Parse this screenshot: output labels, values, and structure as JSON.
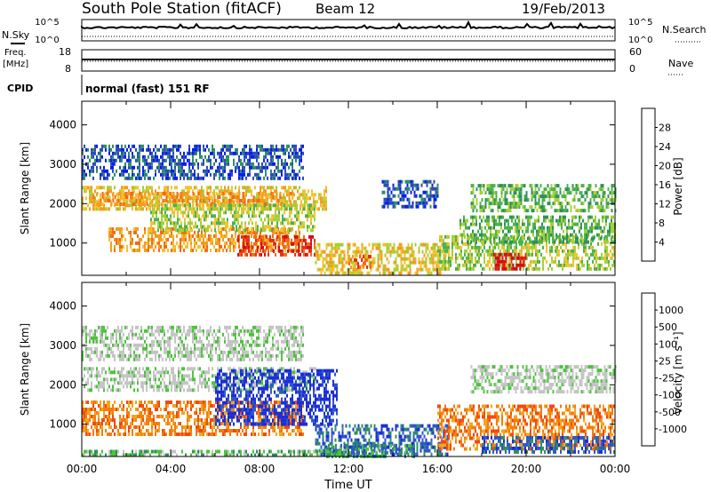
{
  "header": {
    "station": "South Pole Station (fitACF)",
    "beam": "Beam 12",
    "date": "19/Feb/2013"
  },
  "params": {
    "nsky_label": "N.Sky",
    "nsearch_label": "N.Search",
    "freq_label_top": "Freq.",
    "freq_label_bottom": "[MHz]",
    "nave_label": "Nave",
    "cpid_label": "CPID",
    "cpid_value": "normal (fast) 151 RF",
    "noise_left_ticks": [
      "10^5",
      "10^0"
    ],
    "noise_right_ticks": [
      "10^5",
      "10^0"
    ],
    "freq_ticks": [
      "18",
      "8"
    ],
    "nave_ticks": [
      "60",
      "0"
    ]
  },
  "chart_data": [
    {
      "type": "heatmap",
      "ylabel": "Slant Range [km]",
      "ylim": [
        180,
        4600
      ],
      "yticks": [
        1000,
        2000,
        3000,
        4000
      ],
      "xlim": [
        0,
        24
      ],
      "colorbar": {
        "label": "Power [dB]",
        "ticks": [
          "4",
          "8",
          "12",
          "16",
          "20",
          "24",
          "28"
        ],
        "colors": [
          "#0a1cf0",
          "#2a4db8",
          "#2f8f5f",
          "#4cb24c",
          "#a6cf36",
          "#f2c230",
          "#f59a1e",
          "#f26a18",
          "#e63012",
          "#d11010"
        ]
      },
      "regions": [
        {
          "t0": 0.0,
          "t1": 11.0,
          "r0": 1850,
          "r1": 2450,
          "level": 5
        },
        {
          "t0": 0.5,
          "t1": 9.5,
          "r0": 2000,
          "r1": 2300,
          "level": 6
        },
        {
          "t0": 1.2,
          "t1": 9.8,
          "r0": 800,
          "r1": 1400,
          "level": 6
        },
        {
          "t0": 7.0,
          "t1": 10.5,
          "r0": 700,
          "r1": 1200,
          "level": 8
        },
        {
          "t0": 3.0,
          "t1": 10.5,
          "r0": 1300,
          "r1": 2000,
          "level": 4
        },
        {
          "t0": 10.5,
          "t1": 16.5,
          "r0": 250,
          "r1": 1000,
          "level": 5
        },
        {
          "t0": 12.0,
          "t1": 13.0,
          "r0": 350,
          "r1": 700,
          "level": 7
        },
        {
          "t0": 16.0,
          "t1": 24.0,
          "r0": 350,
          "r1": 1200,
          "level": 4
        },
        {
          "t0": 18.5,
          "t1": 20.0,
          "r0": 350,
          "r1": 750,
          "level": 9
        },
        {
          "t0": 17.5,
          "t1": 24.0,
          "r0": 1850,
          "r1": 2500,
          "level": 3
        },
        {
          "t0": 0.0,
          "t1": 10.0,
          "r0": 2600,
          "r1": 3500,
          "level": 1
        },
        {
          "t0": 13.5,
          "t1": 16.0,
          "r0": 1900,
          "r1": 2600,
          "level": 1
        },
        {
          "t0": 17.0,
          "t1": 24.0,
          "r0": 1000,
          "r1": 1700,
          "level": 3
        }
      ]
    },
    {
      "type": "heatmap",
      "ylabel": "Slant Range [km]",
      "xlabel": "Time UT",
      "ylim": [
        180,
        4600
      ],
      "yticks": [
        1000,
        2000,
        3000,
        4000
      ],
      "xlim": [
        0,
        24
      ],
      "xticks": [
        "00:00",
        "04:00",
        "08:00",
        "12:00",
        "16:00",
        "20:00",
        "00:00"
      ],
      "colorbar": {
        "label": "Velocity [m s⁻¹]",
        "ticks": [
          "1000",
          "500",
          "100",
          "25",
          "-25",
          "-100",
          "-500",
          "-1000"
        ],
        "colors": [
          "#1a2fd6",
          "#2f58c9",
          "#2f8f5f",
          "#4cc43c",
          "#c4c4c4",
          "#c4c4c4",
          "#f2a61e",
          "#f57c10",
          "#f24a10",
          "#e61010"
        ]
      },
      "regions": [
        {
          "t0": 0.0,
          "t1": 10.5,
          "r0": 1850,
          "r1": 2450,
          "level": 4
        },
        {
          "t0": 0.0,
          "t1": 10.0,
          "r0": 700,
          "r1": 1600,
          "level": 7
        },
        {
          "t0": 6.0,
          "t1": 11.5,
          "r0": 1000,
          "r1": 2400,
          "level": 0
        },
        {
          "t0": 10.5,
          "t1": 16.5,
          "r0": 250,
          "r1": 1000,
          "level": 1
        },
        {
          "t0": 11.0,
          "t1": 15.0,
          "r0": 200,
          "r1": 500,
          "level": 2
        },
        {
          "t0": 16.0,
          "t1": 24.0,
          "r0": 400,
          "r1": 1500,
          "level": 7
        },
        {
          "t0": 18.0,
          "t1": 24.0,
          "r0": 250,
          "r1": 700,
          "level": 1
        },
        {
          "t0": 17.5,
          "t1": 24.0,
          "r0": 1850,
          "r1": 2500,
          "level": 4
        },
        {
          "t0": 0.0,
          "t1": 10.0,
          "r0": 2600,
          "r1": 3500,
          "level": 4
        },
        {
          "t0": 0.0,
          "t1": 12.0,
          "r0": 180,
          "r1": 350,
          "level": 3
        }
      ]
    }
  ]
}
